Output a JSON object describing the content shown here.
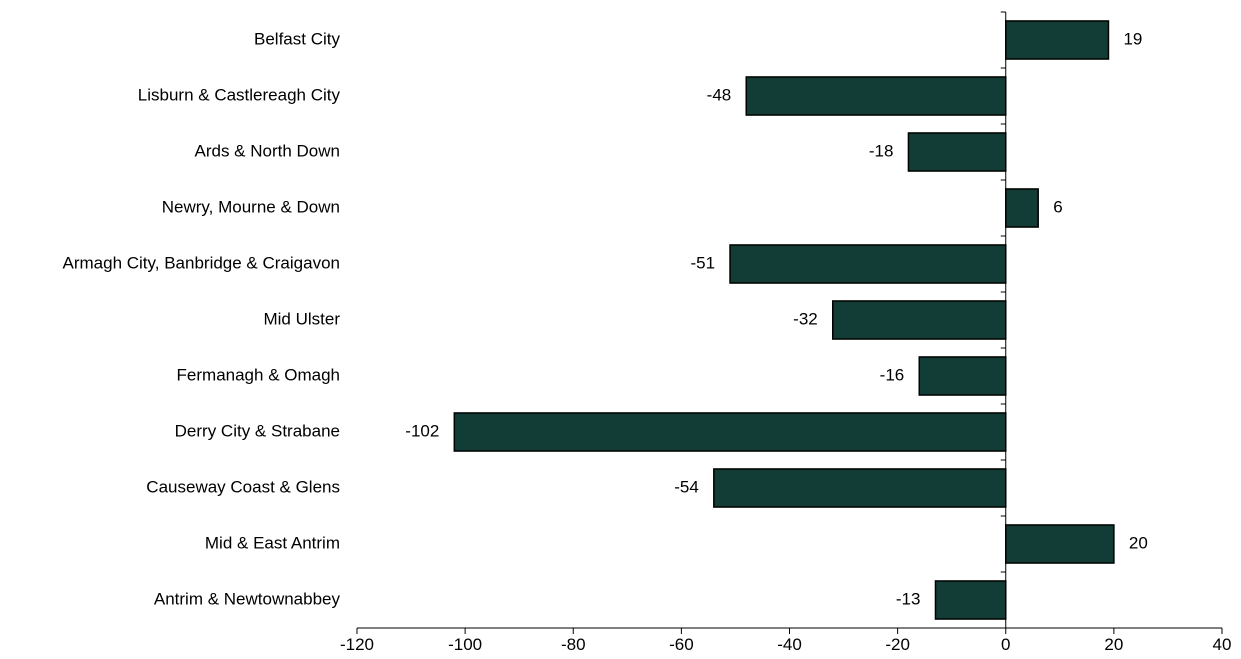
{
  "chart_data": {
    "type": "bar",
    "orientation": "horizontal",
    "categories": [
      "Belfast City",
      "Lisburn & Castlereagh City",
      "Ards & North Down",
      "Newry, Mourne & Down",
      "Armagh City, Banbridge & Craigavon",
      "Mid Ulster",
      "Fermanagh & Omagh",
      "Derry City & Strabane",
      "Causeway Coast & Glens",
      "Mid & East Antrim",
      "Antrim & Newtownabbey"
    ],
    "values": [
      19,
      -48,
      -18,
      6,
      -51,
      -32,
      -16,
      -102,
      -54,
      20,
      -13
    ],
    "value_labels": [
      "19",
      "-48",
      "-18",
      "6",
      "-51",
      "-32",
      "-16",
      "-102",
      "-54",
      "20",
      "-13"
    ],
    "xlim": [
      -120,
      40
    ],
    "xticks": [
      -120,
      -100,
      -80,
      -60,
      -40,
      -20,
      0,
      20,
      40
    ],
    "xtick_labels": [
      "-120",
      "-100",
      "-80",
      "-60",
      "-40",
      "-20",
      "0",
      "20",
      "40"
    ],
    "grid": false,
    "bar_color": "#123d37"
  }
}
